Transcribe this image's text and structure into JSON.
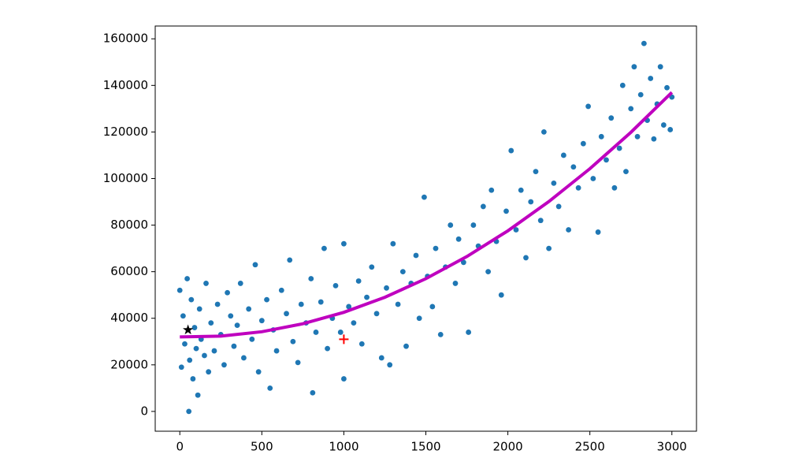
{
  "chart_data": {
    "type": "scatter",
    "xlim": [
      -150,
      3150
    ],
    "ylim": [
      -8500,
      165500
    ],
    "xticks": [
      0,
      500,
      1000,
      1500,
      2000,
      2500,
      3000
    ],
    "yticks": [
      0,
      20000,
      40000,
      60000,
      80000,
      100000,
      120000,
      140000,
      160000
    ],
    "series": [
      {
        "type": "scatter",
        "color": "#1f77b4",
        "x": [
          0,
          10,
          20,
          30,
          45,
          55,
          60,
          70,
          80,
          90,
          100,
          110,
          120,
          130,
          150,
          160,
          175,
          190,
          210,
          230,
          250,
          270,
          290,
          310,
          330,
          350,
          370,
          390,
          420,
          440,
          460,
          480,
          500,
          530,
          550,
          570,
          590,
          620,
          650,
          670,
          690,
          720,
          740,
          770,
          800,
          810,
          830,
          860,
          880,
          900,
          930,
          950,
          980,
          1000,
          1000,
          1030,
          1060,
          1090,
          1110,
          1140,
          1170,
          1200,
          1230,
          1260,
          1280,
          1300,
          1330,
          1360,
          1380,
          1410,
          1440,
          1460,
          1490,
          1510,
          1540,
          1560,
          1590,
          1620,
          1650,
          1680,
          1700,
          1730,
          1760,
          1790,
          1820,
          1850,
          1880,
          1900,
          1930,
          1960,
          1990,
          2020,
          2050,
          2080,
          2110,
          2140,
          2170,
          2200,
          2220,
          2250,
          2280,
          2310,
          2340,
          2370,
          2400,
          2430,
          2460,
          2490,
          2520,
          2550,
          2570,
          2600,
          2630,
          2650,
          2680,
          2700,
          2720,
          2750,
          2770,
          2790,
          2810,
          2830,
          2850,
          2870,
          2890,
          2910,
          2930,
          2950,
          2970,
          2990,
          3000
        ],
        "values": [
          52000,
          19000,
          41000,
          29000,
          57000,
          0,
          22000,
          48000,
          14000,
          36000,
          27000,
          7000,
          44000,
          31000,
          24000,
          55000,
          17000,
          38000,
          26000,
          46000,
          33000,
          20000,
          51000,
          41000,
          28000,
          37000,
          55000,
          23000,
          44000,
          31000,
          63000,
          17000,
          39000,
          48000,
          10000,
          35000,
          26000,
          52000,
          42000,
          65000,
          30000,
          21000,
          46000,
          38000,
          57000,
          8000,
          34000,
          47000,
          70000,
          27000,
          40000,
          54000,
          34000,
          72000,
          14000,
          45000,
          38000,
          56000,
          29000,
          49000,
          62000,
          42000,
          23000,
          53000,
          20000,
          72000,
          46000,
          60000,
          28000,
          55000,
          67000,
          40000,
          92000,
          58000,
          45000,
          70000,
          33000,
          62000,
          80000,
          55000,
          74000,
          64000,
          34000,
          80000,
          71000,
          88000,
          60000,
          95000,
          73000,
          50000,
          86000,
          112000,
          78000,
          95000,
          66000,
          90000,
          103000,
          82000,
          120000,
          70000,
          98000,
          88000,
          110000,
          78000,
          105000,
          96000,
          115000,
          131000,
          100000,
          77000,
          118000,
          108000,
          126000,
          96000,
          113000,
          140000,
          103000,
          130000,
          148000,
          118000,
          136000,
          158000,
          125000,
          143000,
          117000,
          132000,
          148000,
          123000,
          139000,
          121000,
          135000
        ]
      },
      {
        "type": "line",
        "color": "#bf00bf",
        "x": [
          0,
          250,
          500,
          750,
          1000,
          1250,
          1500,
          1750,
          2000,
          2250,
          2500,
          2750,
          3000
        ],
        "values": [
          32000,
          32350,
          34220,
          37630,
          42560,
          49010,
          57000,
          66510,
          77560,
          90130,
          104220,
          119850,
          137000
        ]
      },
      {
        "type": "star",
        "color": "#000000",
        "x": [
          50
        ],
        "values": [
          35000
        ]
      },
      {
        "type": "plus",
        "color": "#ff0000",
        "x": [
          1000
        ],
        "values": [
          31000
        ]
      }
    ]
  }
}
